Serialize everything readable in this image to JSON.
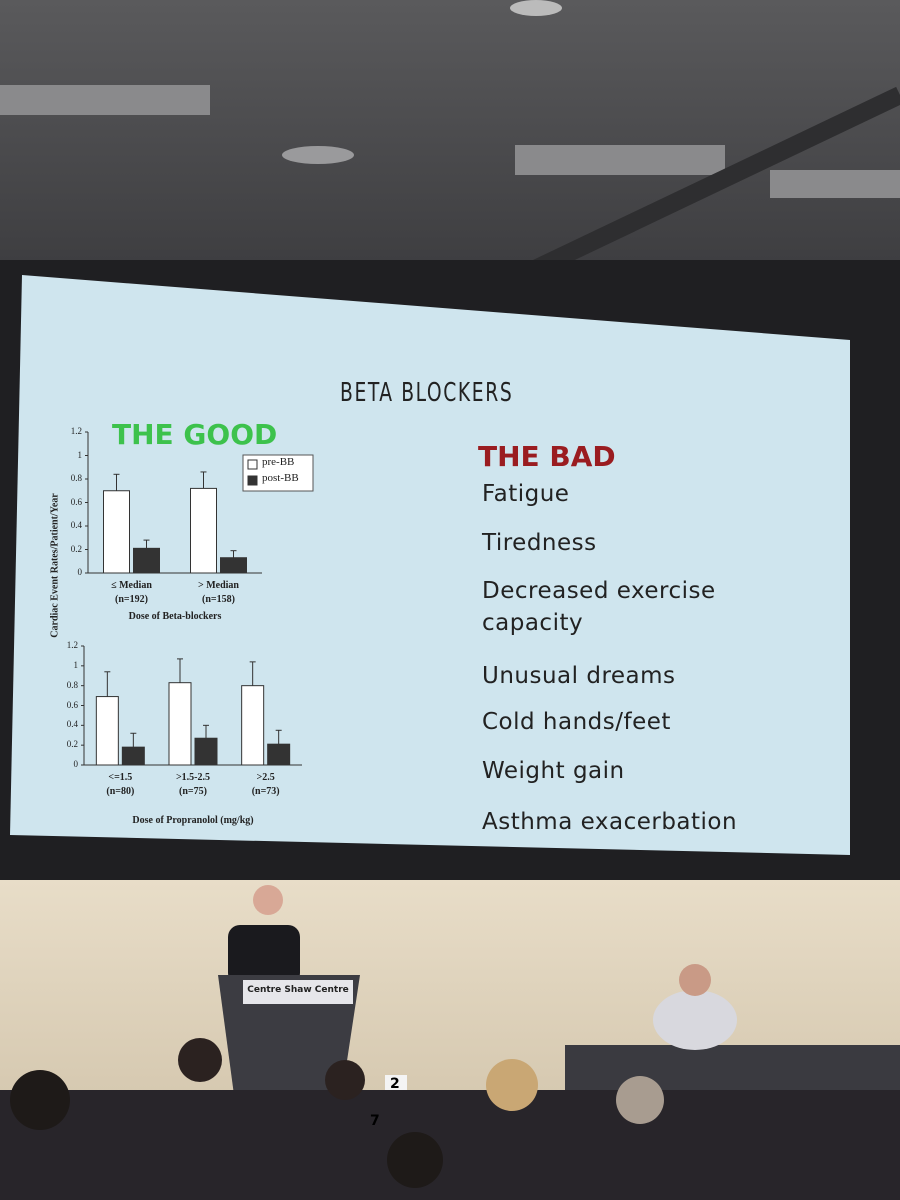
{
  "slide": {
    "title": "BETA BLOCKERS",
    "good_heading": "THE GOOD",
    "bad_heading": "THE BAD",
    "shared_ylabel": "Cardiac Event Rates/Patient/Year",
    "bad_items": [
      "Fatigue",
      "Tiredness",
      "Decreased exercise\ncapacity",
      "Unusual dreams",
      "Cold hands/feet",
      "Weight gain",
      "Asthma exacerbation"
    ]
  },
  "chart_data": [
    {
      "type": "bar",
      "xlabel": "Dose of Beta-blockers",
      "categories": [
        "≤ Median\n(n=192)",
        "> Median\n(n=158)"
      ],
      "series": [
        {
          "name": "pre-BB",
          "color": "#ffffff",
          "values": [
            0.7,
            0.72
          ],
          "errors": [
            0.14,
            0.14
          ]
        },
        {
          "name": "post-BB",
          "color": "#333333",
          "values": [
            0.21,
            0.13
          ],
          "errors": [
            0.07,
            0.06
          ]
        }
      ],
      "ylim": [
        0,
        1.2
      ],
      "yticks": [
        0,
        0.2,
        0.4,
        0.6,
        0.8,
        1,
        1.2
      ],
      "legend": "upper right"
    },
    {
      "type": "bar",
      "xlabel": "Dose of Propranolol (mg/kg)",
      "categories": [
        "<=1.5\n(n=80)",
        ">1.5-2.5\n(n=75)",
        ">2.5\n(n=73)"
      ],
      "series": [
        {
          "name": "pre-BB",
          "color": "#ffffff",
          "values": [
            0.69,
            0.83,
            0.8
          ],
          "errors": [
            0.25,
            0.24,
            0.24
          ]
        },
        {
          "name": "post-BB",
          "color": "#333333",
          "values": [
            0.18,
            0.27,
            0.21
          ],
          "errors": [
            0.14,
            0.13,
            0.14
          ]
        }
      ],
      "ylim": [
        0,
        1.2
      ],
      "yticks": [
        0,
        0.2,
        0.4,
        0.6,
        0.8,
        1,
        1.2
      ]
    }
  ],
  "venue": {
    "podium_sign": "Centre Shaw Centre",
    "table_cards": [
      "2",
      "7"
    ]
  }
}
